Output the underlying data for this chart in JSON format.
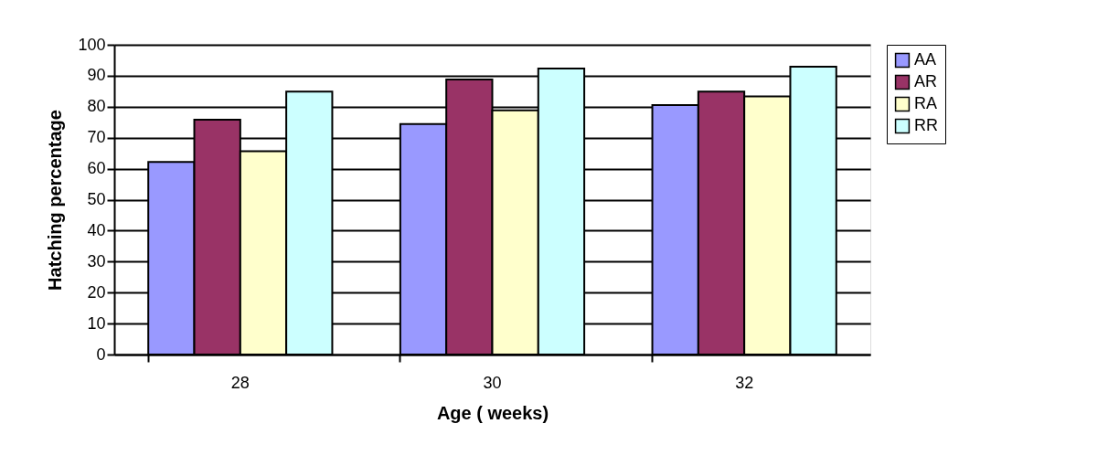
{
  "chart_data": {
    "type": "bar",
    "xlabel": "Age ( weeks)",
    "ylabel": "Hatching percentage",
    "categories": [
      "28",
      "30",
      "32"
    ],
    "series": [
      {
        "name": "AA",
        "color": "#9999ff",
        "values": [
          62.2,
          74.4,
          80.5
        ]
      },
      {
        "name": "AR",
        "color": "#993366",
        "values": [
          75.8,
          88.8,
          84.9
        ]
      },
      {
        "name": "RA",
        "color": "#ffffcc",
        "values": [
          65.6,
          78.8,
          83.3
        ]
      },
      {
        "name": "RR",
        "color": "#ccffff",
        "values": [
          84.9,
          92.3,
          92.9
        ]
      }
    ],
    "ylim": [
      0,
      100
    ],
    "yticks": [
      0,
      10,
      20,
      30,
      40,
      50,
      60,
      70,
      80,
      90,
      100
    ],
    "grid": "y",
    "legend": "right"
  }
}
